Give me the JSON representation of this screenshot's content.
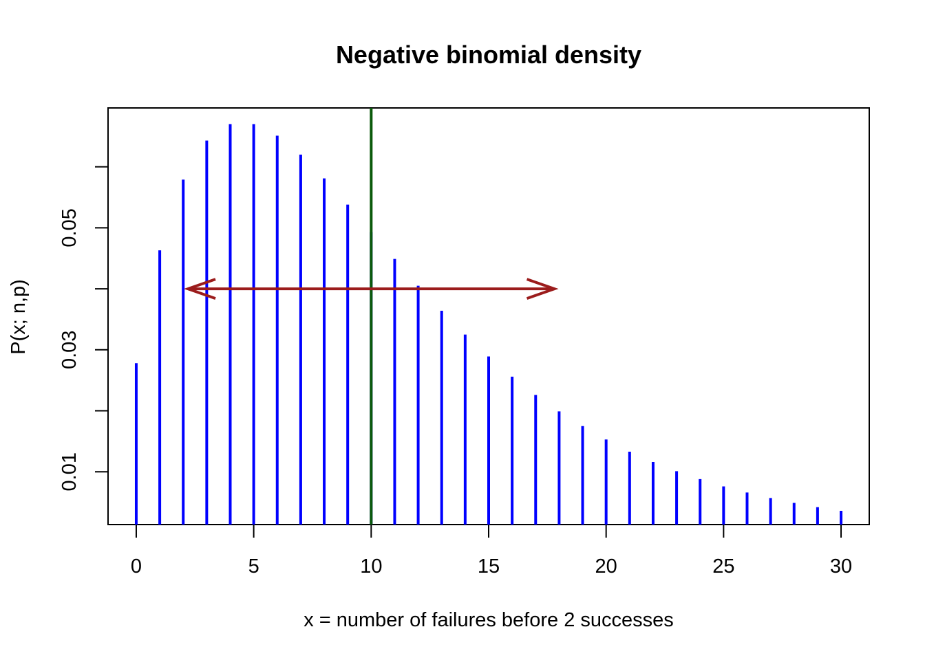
{
  "chart_data": {
    "type": "bar",
    "title": "Negative binomial density",
    "xlabel": "x = number of failures before 2 successes",
    "ylabel": "P(x; n,p)",
    "x": [
      0,
      1,
      2,
      3,
      4,
      5,
      6,
      7,
      8,
      9,
      10,
      11,
      12,
      13,
      14,
      15,
      16,
      17,
      18,
      19,
      20,
      21,
      22,
      23,
      24,
      25,
      26,
      27,
      28,
      29,
      30
    ],
    "values": [
      0.0278,
      0.0463,
      0.0579,
      0.0643,
      0.067,
      0.067,
      0.0651,
      0.062,
      0.0581,
      0.0538,
      0.0493,
      0.0449,
      0.0405,
      0.0364,
      0.0325,
      0.0289,
      0.0256,
      0.0226,
      0.0199,
      0.0175,
      0.0153,
      0.0133,
      0.0116,
      0.0101,
      0.0088,
      0.0076,
      0.0066,
      0.0057,
      0.0049,
      0.0042,
      0.0036
    ],
    "xlim": [
      -1.2,
      31.2
    ],
    "ylim": [
      0.001346,
      0.069654
    ],
    "x_ticks": [
      "0",
      "5",
      "10",
      "15",
      "20",
      "25",
      "30"
    ],
    "y_ticks": [
      "0.01",
      "0.02",
      "0.03",
      "0.04",
      "0.05",
      "0.06"
    ],
    "y_tick_labels": [
      "0.01",
      "",
      "0.03",
      "",
      "0.05",
      ""
    ],
    "mean_line": {
      "x": 10,
      "color": "#0b5a0b"
    },
    "spread_arrow": {
      "from": 2.2,
      "to": 17.8,
      "y": 0.04,
      "color": "#9b1c1c"
    },
    "bar_color": "#0000ff",
    "grid": false,
    "legend": "none"
  }
}
